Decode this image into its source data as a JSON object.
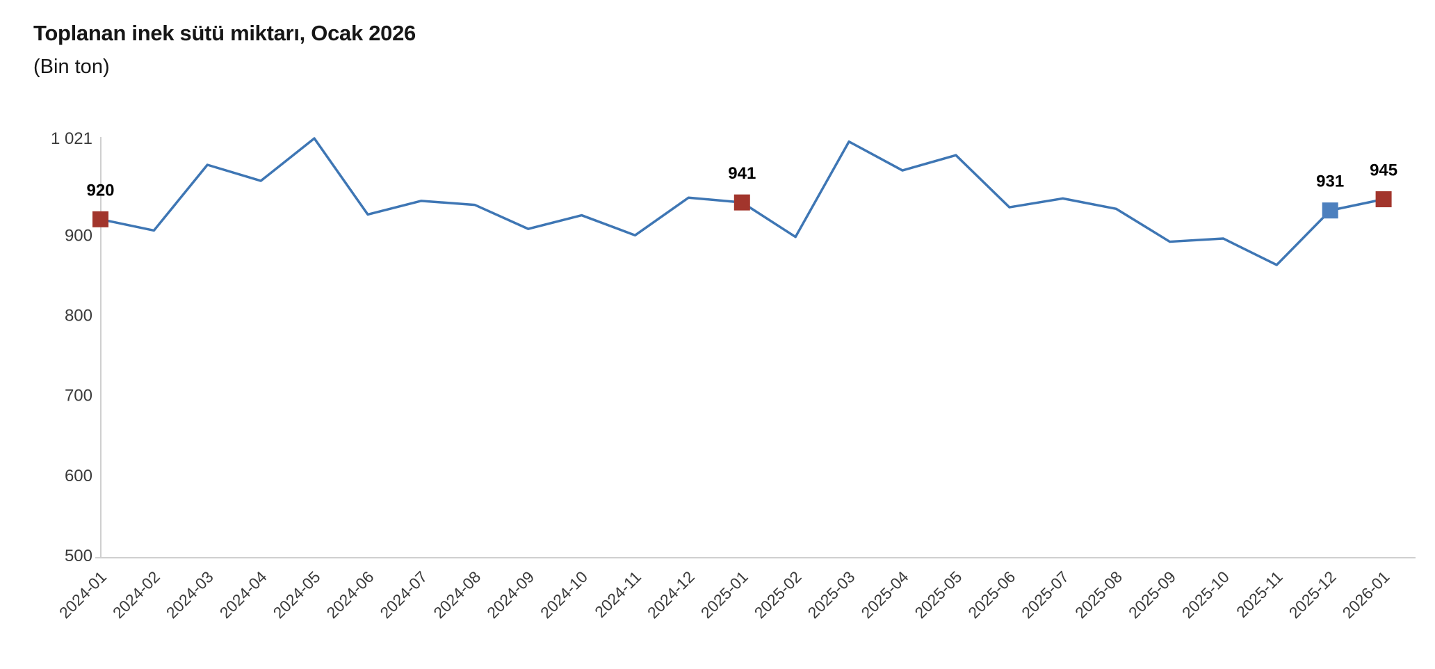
{
  "header": {
    "title": "Toplanan inek sütü miktarı, Ocak 2026",
    "subtitle": "(Bin ton)"
  },
  "chart_data": {
    "type": "line",
    "title": "Toplanan inek sütü miktarı, Ocak 2026",
    "subtitle": "(Bin ton)",
    "xlabel": "",
    "ylabel": "",
    "categories": [
      "2024-01",
      "2024-02",
      "2024-03",
      "2024-04",
      "2024-05",
      "2024-06",
      "2024-07",
      "2024-08",
      "2024-09",
      "2024-10",
      "2024-11",
      "2024-12",
      "2025-01",
      "2025-02",
      "2025-03",
      "2025-04",
      "2025-05",
      "2025-06",
      "2025-07",
      "2025-08",
      "2025-09",
      "2025-10",
      "2025-11",
      "2025-12",
      "2026-01"
    ],
    "values": [
      920,
      906,
      988,
      968,
      1021,
      926,
      943,
      938,
      908,
      925,
      900,
      947,
      941,
      898,
      1017,
      981,
      1000,
      935,
      946,
      933,
      892,
      896,
      863,
      931,
      945
    ],
    "ylim": [
      500,
      1021
    ],
    "yticks": [
      500,
      600,
      700,
      800,
      900,
      1021
    ],
    "ytick_labels": [
      "500",
      "600",
      "700",
      "800",
      "900",
      "1 021"
    ],
    "grid": false,
    "legend_position": "none",
    "x_label_rotation_deg": 45,
    "line_color": "#3e76b4",
    "axis_color": "#cfcfcf",
    "tick_label_color": "#3a3a3a",
    "data_label_color": "#000000",
    "labeled_points": [
      {
        "category": "2024-01",
        "value": 920,
        "label": "920",
        "marker_color": "#a2352c"
      },
      {
        "category": "2025-01",
        "value": 941,
        "label": "941",
        "marker_color": "#a2352c"
      },
      {
        "category": "2025-12",
        "value": 931,
        "label": "931",
        "marker_color": "#4d80be"
      },
      {
        "category": "2026-01",
        "value": 945,
        "label": "945",
        "marker_color": "#a2352c"
      }
    ]
  }
}
